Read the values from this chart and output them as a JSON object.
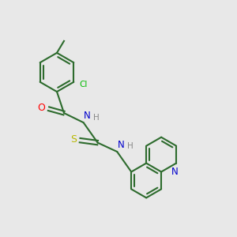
{
  "background_color": "#e8e8e8",
  "bond_color": "#2d6b2d",
  "atom_colors": {
    "O": "#ff0000",
    "N": "#0000cc",
    "S": "#b8b800",
    "Cl": "#00bb00",
    "C_label": "#2d6b2d"
  },
  "figsize": [
    3.0,
    3.0
  ],
  "dpi": 100
}
